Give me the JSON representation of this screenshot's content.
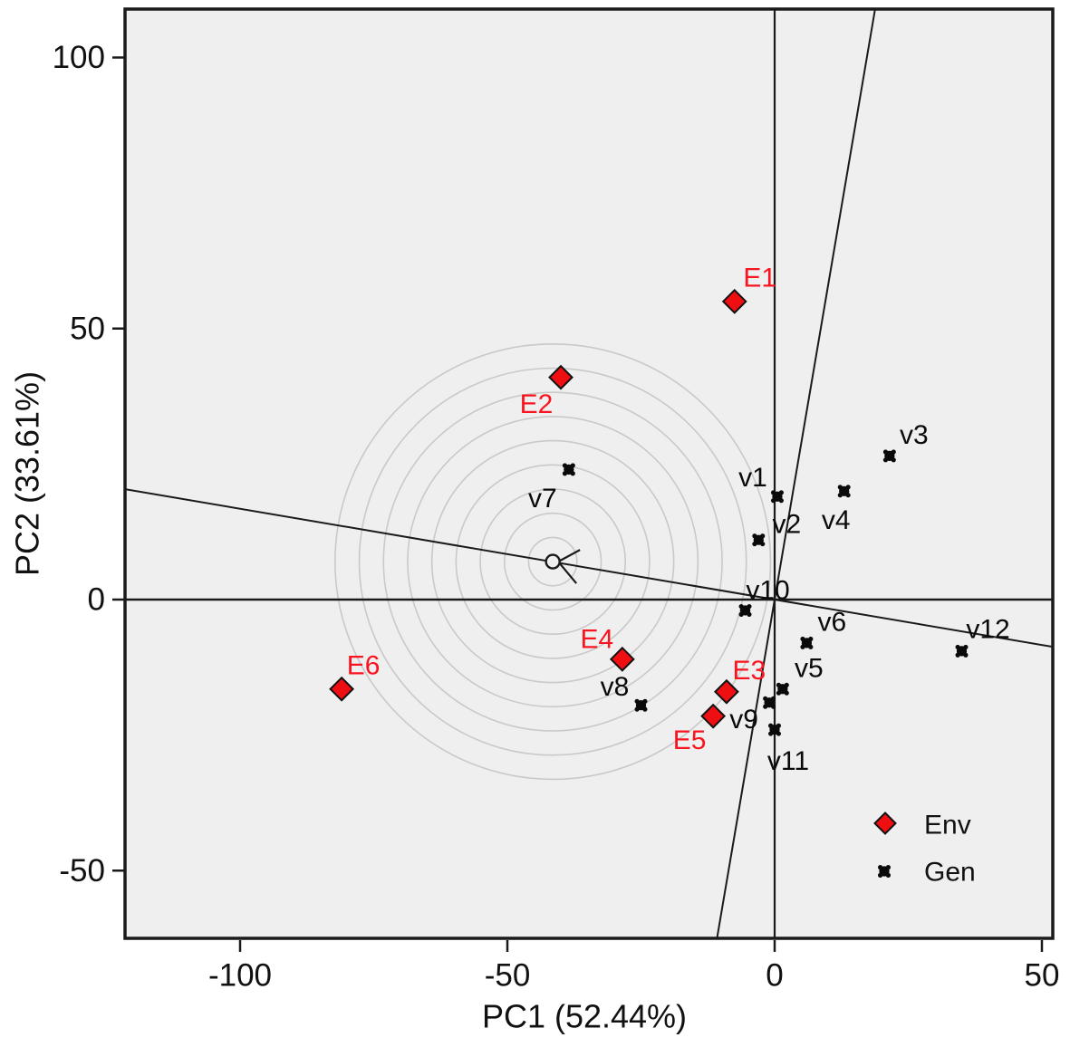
{
  "figure": {
    "background": "#ffffff",
    "plot_background": "#efefef",
    "frame_color": "#1a1a1a"
  },
  "axes": {
    "x": {
      "title": "PC1 (52.44%)",
      "tick_labels": [
        "-100",
        "-50",
        "0",
        "50"
      ],
      "tick_values": [
        -100,
        -50,
        0,
        50
      ]
    },
    "y": {
      "title": "PC2 (33.61%)",
      "tick_labels": [
        "100",
        "50",
        "0",
        "-50"
      ],
      "tick_values": [
        100,
        50,
        0,
        -50
      ]
    }
  },
  "legend": {
    "items": [
      {
        "label": "Env",
        "marker": "diamond-icon",
        "color": "#ef0f12"
      },
      {
        "label": "Gen",
        "marker": "dot-icon",
        "color": "#0a0a0a"
      }
    ]
  },
  "colors": {
    "env_marker": "#ef0f12",
    "env_label": "#fa1420",
    "gen_marker": "#0a0a0a",
    "gen_label": "#0a0a0a",
    "ring": "#c9c9c9",
    "line": "#1a1a1a"
  },
  "chart_data": {
    "type": "scatter",
    "title": "",
    "xlabel": "PC1 (52.44%)",
    "ylabel": "PC2 (33.61%)",
    "xlim": [
      -121.5,
      52
    ],
    "ylim": [
      -62.5,
      109
    ],
    "grid": false,
    "legend_position": "bottom-right-inside",
    "series": [
      {
        "name": "Env",
        "marker": "diamond",
        "points": [
          {
            "label": "E1",
            "x": -7.5,
            "y": 55,
            "ox": 28,
            "oy": -26
          },
          {
            "label": "E2",
            "x": -40,
            "y": 41,
            "ox": -27,
            "oy": 30
          },
          {
            "label": "E3",
            "x": -9,
            "y": -17,
            "ox": 25,
            "oy": -23
          },
          {
            "label": "E4",
            "x": -28.5,
            "y": -11,
            "ox": -28,
            "oy": -22
          },
          {
            "label": "E5",
            "x": -11.5,
            "y": -21.5,
            "ox": -26,
            "oy": 27
          },
          {
            "label": "E6",
            "x": -81,
            "y": -16.5,
            "ox": 24,
            "oy": -26
          }
        ]
      },
      {
        "name": "Gen",
        "marker": "dot",
        "points": [
          {
            "label": "v1",
            "x": 0.5,
            "y": 19,
            "ox": -27,
            "oy": -21
          },
          {
            "label": "v2",
            "x": -3,
            "y": 11,
            "ox": 31,
            "oy": -17
          },
          {
            "label": "v3",
            "x": 21.5,
            "y": 26.5,
            "ox": 27,
            "oy": -23
          },
          {
            "label": "v4",
            "x": 13,
            "y": 20,
            "ox": -9,
            "oy": 32
          },
          {
            "label": "v5",
            "x": 1.5,
            "y": -16.5,
            "ox": 29,
            "oy": -23
          },
          {
            "label": "v6",
            "x": 6,
            "y": -8,
            "ox": 28,
            "oy": -23
          },
          {
            "label": "v7",
            "x": -38.5,
            "y": 24,
            "ox": -29,
            "oy": 32
          },
          {
            "label": "v8",
            "x": -25,
            "y": -19.5,
            "ox": -29,
            "oy": -20
          },
          {
            "label": "v9",
            "x": -1,
            "y": -19,
            "ox": -28,
            "oy": 19
          },
          {
            "label": "v10",
            "x": -5.5,
            "y": -2,
            "ox": 25,
            "oy": -22
          },
          {
            "label": "v11",
            "x": 0,
            "y": -24,
            "ox": 15,
            "oy": 35
          },
          {
            "label": "v12",
            "x": 35,
            "y": -9.5,
            "ox": 29,
            "oy": -24
          }
        ]
      }
    ],
    "annotations": {
      "origin_cross_lines": true,
      "average_environment_axis": {
        "through_origin": true,
        "slope_data": -0.168
      },
      "perpendicular_axis": {
        "through_origin": true
      },
      "concentric_rings": {
        "center_x": -41.5,
        "center_y": 7,
        "count": 9
      },
      "origin_marker": "small open circle with arrowhead"
    }
  }
}
